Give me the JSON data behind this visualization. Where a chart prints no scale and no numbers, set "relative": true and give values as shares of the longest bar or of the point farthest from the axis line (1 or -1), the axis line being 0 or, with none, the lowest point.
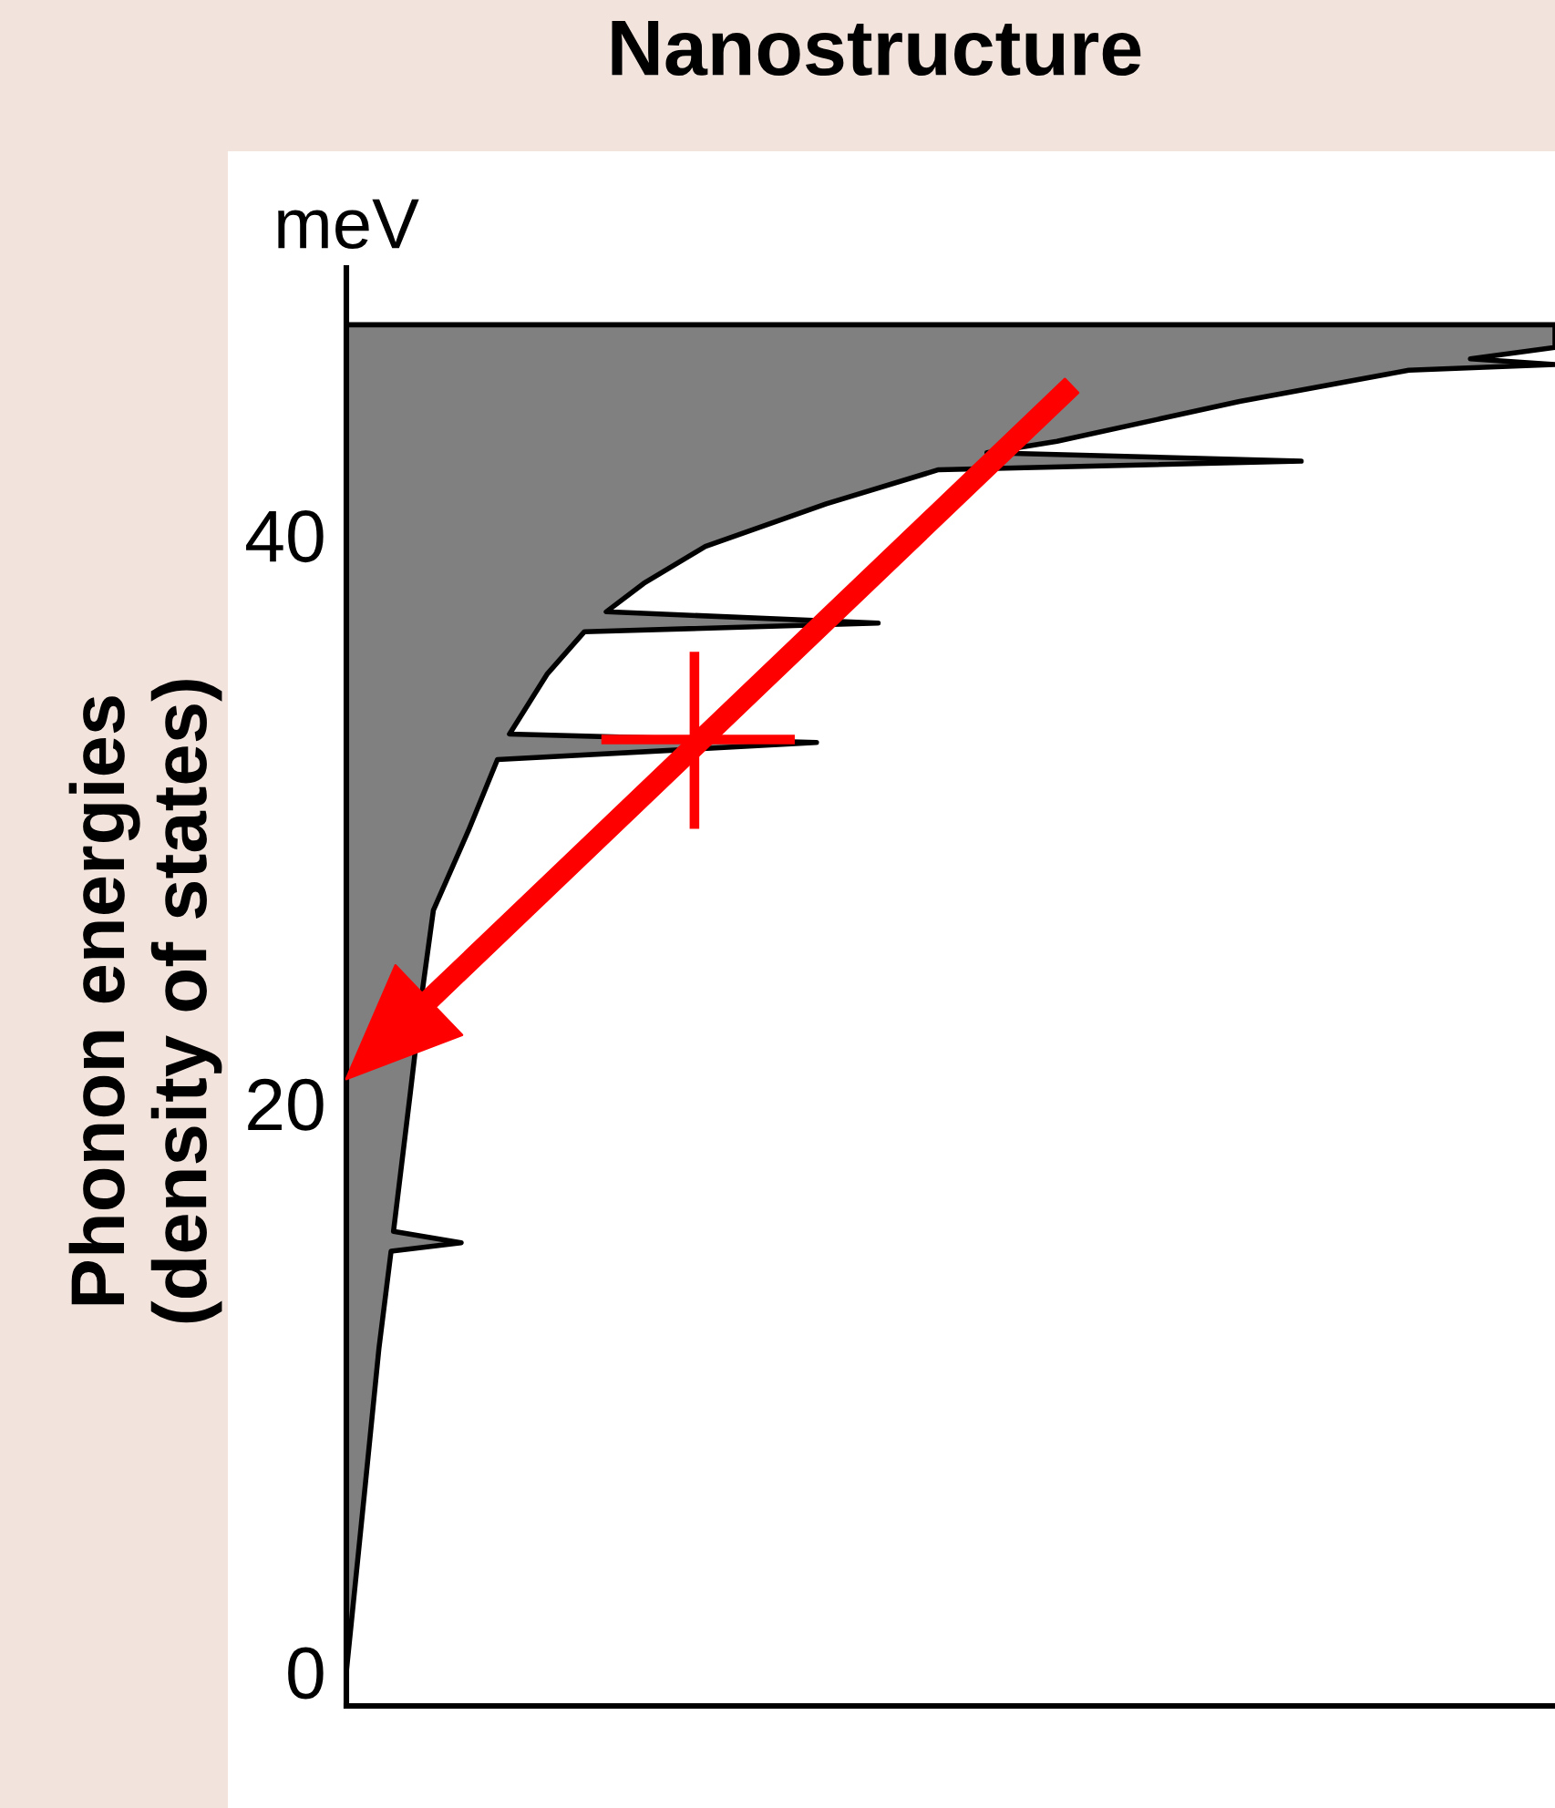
{
  "chart_data": {
    "type": "area",
    "title": "Nanostructure",
    "ylabel": "Phonon energies\n(density of states)",
    "annotations": [
      "meV"
    ],
    "orientation": "horizontal",
    "relative": true,
    "color": "#808080",
    "x": [
      0,
      6.3,
      11.4,
      14.8,
      15.1,
      15.5,
      20.4,
      24.0,
      26.8,
      29.6,
      32.1,
      32.7,
      33.0,
      35.1,
      36.6,
      36.9,
      37.3,
      38.3,
      39.6,
      41.1,
      42.3,
      42.6,
      42.9,
      43.3,
      44.7,
      45.8,
      46.0,
      46.2,
      46.6,
      47.4
    ],
    "values": [
      0,
      0.015,
      0.027,
      0.037,
      0.095,
      0.039,
      0.053,
      0.063,
      0.072,
      0.101,
      0.125,
      0.389,
      0.135,
      0.166,
      0.197,
      0.44,
      0.215,
      0.246,
      0.297,
      0.397,
      0.49,
      0.79,
      0.53,
      0.588,
      0.739,
      0.879,
      1.0,
      0.93,
      1.0,
      1.0
    ],
    "ylim": [
      -1.2,
      49.4
    ],
    "yticks": [
      0,
      20,
      40
    ]
  }
}
